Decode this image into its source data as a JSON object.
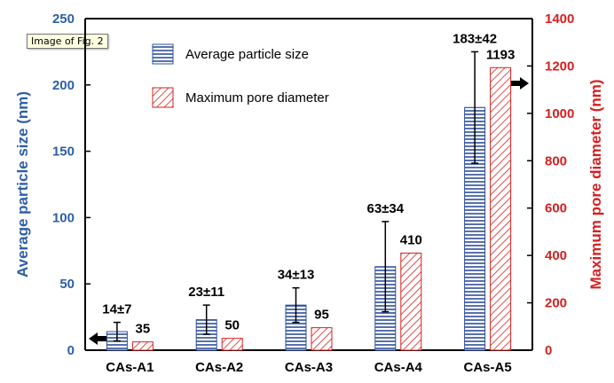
{
  "tooltip": "Image of Fig. 2",
  "colors": {
    "left_axis": "#2e5ea6",
    "right_axis": "#d62020",
    "blue_bar": "#2e4f99",
    "red_bar": "#d62020"
  },
  "chart_data": {
    "type": "bar",
    "categories": [
      "CAs-A1",
      "CAs-A2",
      "CAs-A3",
      "CAs-A4",
      "CAs-A5"
    ],
    "series": [
      {
        "name": "Average particle size",
        "axis": "left",
        "values": [
          14,
          23,
          34,
          63,
          183
        ],
        "errors": [
          7,
          11,
          13,
          34,
          42
        ],
        "labels": [
          "14±7",
          "23±11",
          "34±13",
          "63±34",
          "183±42"
        ],
        "pattern": "horizontal-lines",
        "color": "#2e4f99"
      },
      {
        "name": "Maximum pore diameter",
        "axis": "right",
        "values": [
          35,
          50,
          95,
          410,
          1193
        ],
        "labels": [
          "35",
          "50",
          "95",
          "410",
          "1193"
        ],
        "pattern": "diagonal-hatch",
        "color": "#d62020"
      }
    ],
    "ylabel": "Average particle size (nm)",
    "ylim": [
      0,
      250
    ],
    "yticks": [
      "0",
      "50",
      "100",
      "150",
      "200",
      "250"
    ],
    "y2label": "Maximum pore diameter (nm)",
    "y2lim": [
      0,
      1400
    ],
    "y2ticks": [
      "0",
      "200",
      "400",
      "600",
      "800",
      "1000",
      "1200",
      "1400"
    ],
    "legend_position": "top-left",
    "axis_arrows": [
      "left",
      "right"
    ]
  }
}
